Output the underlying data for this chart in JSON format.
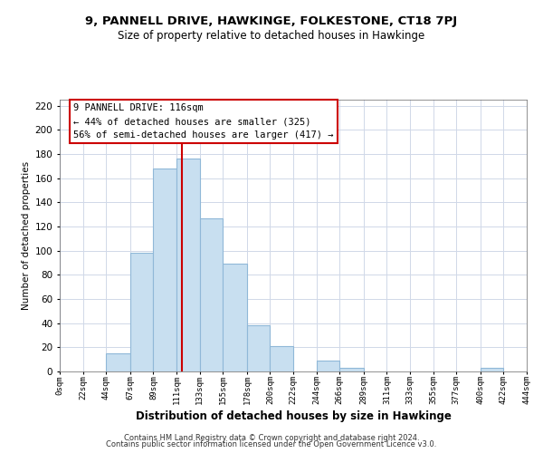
{
  "title": "9, PANNELL DRIVE, HAWKINGE, FOLKESTONE, CT18 7PJ",
  "subtitle": "Size of property relative to detached houses in Hawkinge",
  "xlabel": "Distribution of detached houses by size in Hawkinge",
  "ylabel": "Number of detached properties",
  "bin_edges": [
    0,
    22,
    44,
    67,
    89,
    111,
    133,
    155,
    178,
    200,
    222,
    244,
    266,
    289,
    311,
    333,
    355,
    377,
    400,
    422,
    444
  ],
  "bar_heights": [
    0,
    0,
    15,
    98,
    168,
    176,
    127,
    89,
    38,
    21,
    0,
    9,
    3,
    0,
    0,
    0,
    0,
    0,
    3,
    0
  ],
  "bar_color": "#c8dff0",
  "bar_edge_color": "#90b8d8",
  "property_line_x": 116,
  "property_line_color": "#cc0000",
  "ylim": [
    0,
    225
  ],
  "yticks": [
    0,
    20,
    40,
    60,
    80,
    100,
    120,
    140,
    160,
    180,
    200,
    220
  ],
  "xtick_labels": [
    "0sqm",
    "22sqm",
    "44sqm",
    "67sqm",
    "89sqm",
    "111sqm",
    "133sqm",
    "155sqm",
    "178sqm",
    "200sqm",
    "222sqm",
    "244sqm",
    "266sqm",
    "289sqm",
    "311sqm",
    "333sqm",
    "355sqm",
    "377sqm",
    "400sqm",
    "422sqm",
    "444sqm"
  ],
  "annotation_title": "9 PANNELL DRIVE: 116sqm",
  "annotation_line1": "← 44% of detached houses are smaller (325)",
  "annotation_line2": "56% of semi-detached houses are larger (417) →",
  "footnote1": "Contains HM Land Registry data © Crown copyright and database right 2024.",
  "footnote2": "Contains public sector information licensed under the Open Government Licence v3.0.",
  "background_color": "#ffffff",
  "grid_color": "#d0d8e8"
}
